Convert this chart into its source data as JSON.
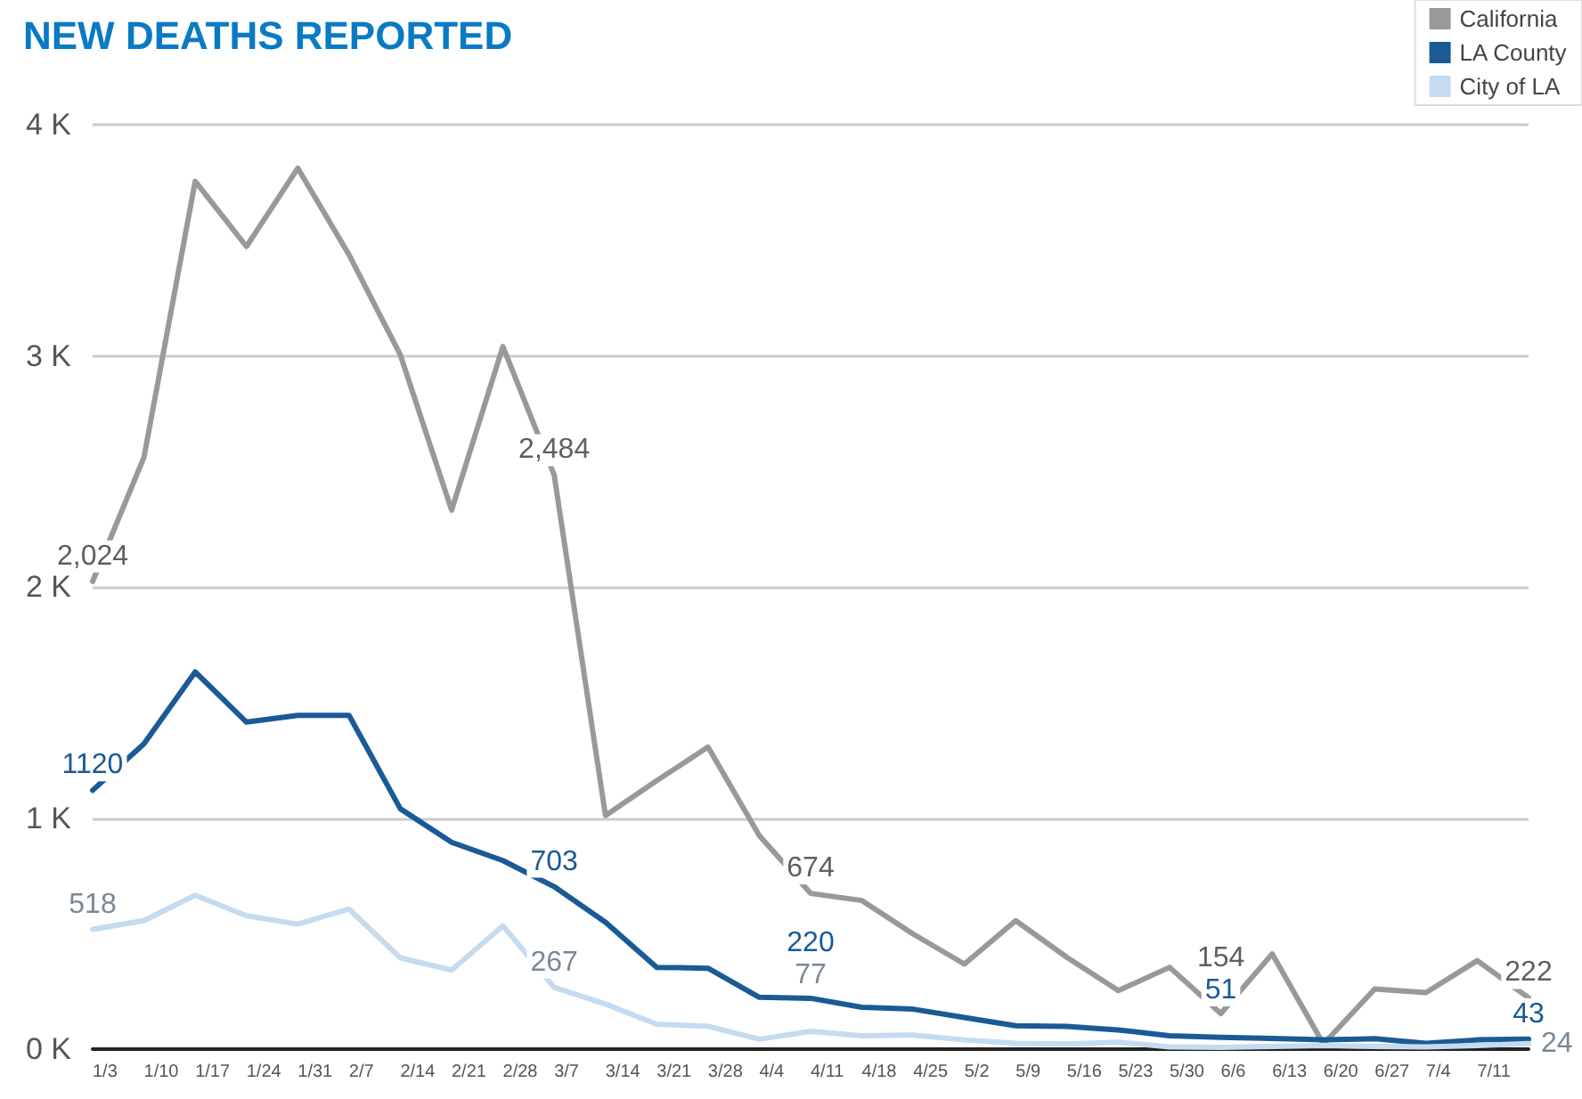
{
  "chart_data": {
    "type": "line",
    "title": "NEW DEATHS REPORTED",
    "categories": [
      "1/3",
      "1/10",
      "1/17",
      "1/24",
      "1/31",
      "2/7",
      "2/14",
      "2/21",
      "2/28",
      "3/7",
      "3/14",
      "3/21",
      "3/28",
      "4/4",
      "4/11",
      "4/18",
      "4/25",
      "5/2",
      "5/9",
      "5/16",
      "5/23",
      "5/30",
      "6/6",
      "6/13",
      "6/20",
      "6/27",
      "7/4",
      "7/11",
      null
    ],
    "series": [
      {
        "name": "California",
        "color": "#999999",
        "values": [
          2024,
          2560,
          3755,
          3473,
          3812,
          3437,
          3004,
          2332,
          3040,
          2484,
          1011,
          1162,
          1307,
          924,
          674,
          643,
          498,
          368,
          556,
          397,
          253,
          354,
          154,
          412,
          22,
          260,
          245,
          383,
          222
        ],
        "value_labels": [
          "2,024",
          null,
          null,
          null,
          null,
          null,
          null,
          null,
          null,
          "2,484",
          null,
          null,
          null,
          null,
          "674",
          null,
          null,
          null,
          null,
          null,
          null,
          null,
          "154",
          null,
          null,
          null,
          null,
          null,
          "222"
        ]
      },
      {
        "name": "LA County",
        "color": "#1a5a96",
        "values": [
          1120,
          1321,
          1632,
          1415,
          1444,
          1444,
          1040,
          895,
          816,
          703,
          549,
          354,
          350,
          224,
          220,
          181,
          173,
          137,
          101,
          98,
          83,
          58,
          51,
          46,
          40,
          45,
          25,
          40,
          43
        ],
        "value_labels": [
          "1120",
          null,
          null,
          null,
          null,
          null,
          null,
          null,
          null,
          "703",
          null,
          null,
          null,
          null,
          "220",
          null,
          null,
          null,
          null,
          null,
          null,
          null,
          "51",
          null,
          null,
          null,
          null,
          null,
          "43"
        ]
      },
      {
        "name": "City of LA",
        "color": "#c5dbf0",
        "values": [
          518,
          556,
          666,
          577,
          541,
          606,
          395,
          342,
          534,
          267,
          195,
          108,
          99,
          43,
          77,
          58,
          61,
          40,
          25,
          22,
          30,
          10,
          8,
          12,
          15,
          12,
          10,
          15,
          24
        ],
        "value_labels": [
          "518",
          null,
          null,
          null,
          null,
          null,
          null,
          null,
          null,
          "267",
          null,
          null,
          null,
          null,
          "77",
          null,
          null,
          null,
          null,
          null,
          null,
          null,
          null,
          null,
          null,
          null,
          null,
          null,
          "24"
        ]
      }
    ],
    "ylim": [
      0,
      4000
    ],
    "yticks": [
      {
        "value": 0,
        "label": "0 K"
      },
      {
        "value": 1000,
        "label": "1 K"
      },
      {
        "value": 2000,
        "label": "2 K"
      },
      {
        "value": 3000,
        "label": "3 K"
      },
      {
        "value": 4000,
        "label": "4 K"
      }
    ],
    "grid": "y",
    "legend": "top right",
    "marker": "none",
    "line_style": "solid"
  }
}
